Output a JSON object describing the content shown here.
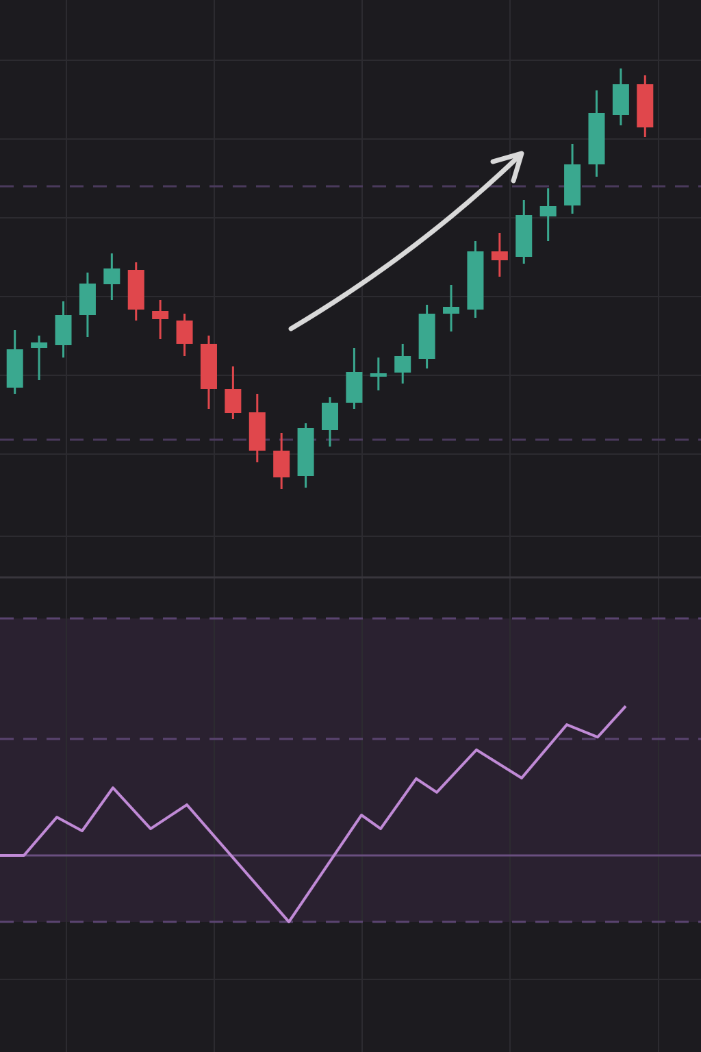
{
  "chart_data": [
    {
      "type": "candlestick",
      "categories": [
        null,
        null,
        null,
        null,
        null,
        null,
        null,
        null,
        null,
        null,
        null,
        null,
        null,
        null,
        null,
        null,
        null,
        null,
        null,
        null,
        null,
        null,
        null,
        null,
        null,
        null,
        null
      ],
      "open": [
        27.4,
        33.2,
        33.6,
        38.0,
        42.5,
        44.6,
        38.6,
        37.2,
        33.8,
        27.2,
        23.8,
        18.2,
        14.5,
        21.2,
        25.2,
        29.0,
        29.6,
        31.6,
        38.2,
        38.8,
        47.3,
        46.5,
        52.4,
        54.0,
        60.0,
        67.2,
        71.7
      ],
      "high": [
        35.8,
        35.0,
        40.0,
        44.2,
        47.0,
        45.7,
        40.2,
        38.2,
        35.0,
        30.5,
        26.5,
        20.8,
        22.2,
        26.0,
        33.2,
        31.8,
        33.8,
        39.5,
        42.4,
        48.8,
        50.0,
        54.8,
        56.5,
        63.0,
        70.8,
        74.0,
        73.0
      ],
      "low": [
        26.5,
        28.5,
        31.8,
        34.8,
        40.2,
        37.2,
        34.5,
        32.0,
        24.3,
        22.8,
        16.5,
        12.6,
        12.8,
        18.8,
        24.3,
        27.0,
        28.0,
        30.2,
        35.6,
        37.6,
        43.6,
        45.5,
        48.8,
        52.8,
        58.2,
        65.7,
        64.0
      ],
      "close": [
        33.0,
        34.0,
        38.0,
        42.6,
        44.8,
        38.8,
        37.4,
        33.8,
        27.2,
        23.7,
        18.2,
        14.3,
        21.5,
        25.2,
        29.7,
        29.5,
        32.0,
        38.2,
        39.2,
        47.3,
        46.0,
        52.6,
        53.9,
        60.0,
        67.5,
        71.7,
        65.4
      ],
      "up_color": "#3aa88f",
      "down_color": "#e0474c",
      "ylim": [
        0,
        84
      ],
      "hlines": [
        56.8,
        19.8
      ],
      "hline_color": "#4a3a5c"
    },
    {
      "type": "line",
      "x": [
        0,
        35,
        83,
        120,
        165,
        220,
        273,
        422,
        528,
        556,
        608,
        638,
        696,
        762,
        828,
        873,
        914
      ],
      "values": [
        21.9,
        21.9,
        34.5,
        30.0,
        44.2,
        30.7,
        38.6,
        0,
        35.2,
        30.7,
        47.2,
        42.7,
        56.7,
        47.4,
        65.0,
        60.9,
        71.1
      ],
      "color": "#c08ad6",
      "xlim": [
        0,
        1024
      ],
      "ylim": [
        0,
        100
      ],
      "hlines": [
        100,
        60.3,
        0
      ],
      "baseline": 21.9,
      "hline_color": "#5a4470",
      "panel_color": "#2a2130"
    }
  ]
}
